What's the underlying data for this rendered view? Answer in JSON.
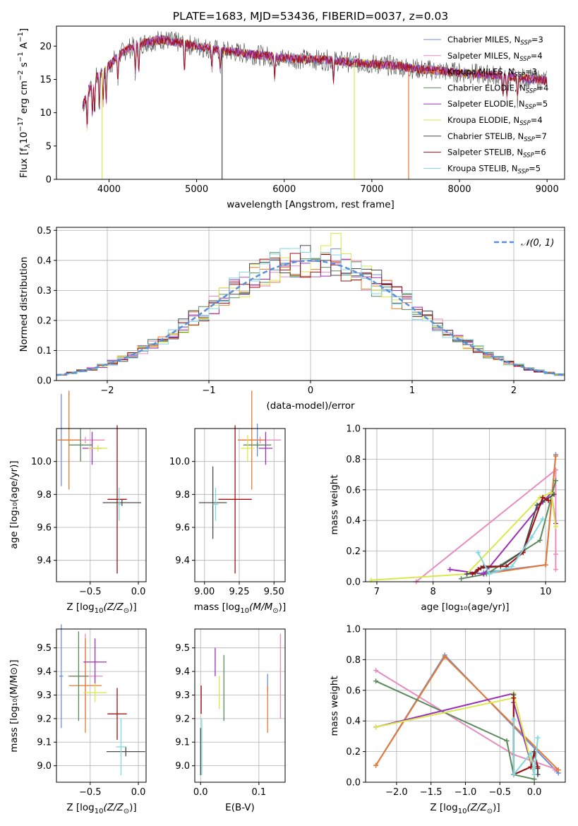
{
  "figure_title": "PLATE=1683, MJD=53436, FIBERID=0037, z=0.03",
  "colors": {
    "Chabrier MILES": "#6a8fd8",
    "Salpeter MILES": "#e88cc0",
    "Kroupa MILES": "#e8792e",
    "Chabrier ELODIE": "#5a8a5a",
    "Salpeter ELODIE": "#9b30b8",
    "Kroupa ELODIE": "#d9e84a",
    "Chabrier STELIB": "#4a4a4a",
    "Salpeter STELIB": "#a01010",
    "Kroupa STELIB": "#7fd8e0",
    "normal": "#5b8fd8"
  },
  "chart_data": [
    {
      "type": "line",
      "xlabel": "wavelength [Angstrom, rest frame]",
      "ylabel_main": "Flux [f",
      "ylabel_sub": "λ",
      "ylabel_rest": "10",
      "ylabel_sup1": "−17",
      "ylabel_mid": " erg cm",
      "ylabel_sup2": "−2",
      "ylabel_mid2": " s",
      "ylabel_sup3": "−1",
      "ylabel_end": " A",
      "ylabel_sup4": "−1",
      "ylabel_close": "]",
      "xlim": [
        3400,
        9200
      ],
      "ylim": [
        0,
        23
      ],
      "xticks": [
        4000,
        5000,
        6000,
        7000,
        8000,
        9000
      ],
      "yticks": [
        0,
        5,
        10,
        15,
        20
      ],
      "legend": [
        {
          "base": "Chabrier MILES, N",
          "sub": "SSP",
          "tail": "=3"
        },
        {
          "base": "Salpeter MILES, N",
          "sub": "SSP",
          "tail": "=4"
        },
        {
          "base": "Kroupa MILES, N",
          "sub": "SSP",
          "tail": "=3"
        },
        {
          "base": "Chabrier ELODIE, N",
          "sub": "SSP",
          "tail": "=4"
        },
        {
          "base": "Salpeter ELODIE, N",
          "sub": "SSP",
          "tail": "=5"
        },
        {
          "base": "Kroupa ELODIE, N",
          "sub": "SSP",
          "tail": "=4"
        },
        {
          "base": "Chabrier STELIB, N",
          "sub": "SSP",
          "tail": "=7"
        },
        {
          "base": "Salpeter STELIB, N",
          "sub": "SSP",
          "tail": "=6"
        },
        {
          "base": "Kroupa STELIB, N",
          "sub": "SSP",
          "tail": "=5"
        }
      ],
      "series_names": [
        "Chabrier MILES",
        "Salpeter MILES",
        "Kroupa MILES",
        "Chabrier ELODIE",
        "Salpeter ELODIE",
        "Kroupa ELODIE",
        "Chabrier STELIB",
        "Salpeter STELIB",
        "Kroupa STELIB"
      ],
      "flux_nodes": {
        "x": [
          3700,
          3800,
          3900,
          4000,
          4100,
          4200,
          4400,
          4600,
          4800,
          5000,
          5200,
          5500,
          5800,
          6000,
          6300,
          6600,
          6800,
          7000,
          7300,
          7500,
          8000,
          8500,
          9000,
          9200
        ],
        "y": [
          11,
          14.5,
          16,
          17,
          18.5,
          19.5,
          20.5,
          21,
          20.5,
          20,
          19.5,
          19,
          18.5,
          18.2,
          18,
          17.8,
          17.5,
          17.3,
          17,
          16.6,
          16,
          15.5,
          14.8,
          14.5
        ]
      },
      "absorption_lines": [
        3750,
        3810,
        3835,
        3889,
        3933,
        3968,
        4101,
        4300,
        4340,
        4861,
        5175,
        5270,
        5890,
        6563,
        8498,
        8542,
        8662
      ],
      "spikes": [
        {
          "series": "Kroupa ELODIE",
          "x": 3920,
          "y": 0
        },
        {
          "series": "Chabrier STELIB",
          "x": 5290,
          "y": 0
        },
        {
          "series": "Kroupa ELODIE",
          "x": 6800,
          "y": 0
        },
        {
          "series": "Kroupa MILES",
          "x": 7420,
          "y": 0
        }
      ]
    },
    {
      "type": "histogram",
      "xlabel": "(data-model)/error",
      "ylabel": "Normed distribution",
      "xlim": [
        -2.5,
        2.5
      ],
      "ylim": [
        0,
        0.51
      ],
      "xticks": [
        -2,
        -1,
        0,
        1,
        2
      ],
      "xtick_labels": [
        "−2",
        "−1",
        "0",
        "1",
        "2"
      ],
      "yticks": [
        0.0,
        0.1,
        0.2,
        0.3,
        0.4,
        0.5
      ],
      "ytick_labels": [
        "0.0",
        "0.1",
        "0.2",
        "0.3",
        "0.4",
        "0.5"
      ],
      "bin_width": 0.1,
      "legend_label": "𝒩(0, 1)",
      "grid": true
    },
    {
      "type": "scatter",
      "xlabel_main": "Z [log",
      "xlabel_sub": "10",
      "xlabel_rest": "(Z/Z",
      "xlabel_sub2": "⊙",
      "xlabel_close": ")]",
      "ylabel": "age  [log₁₀(age/yr)]",
      "xlim": [
        -0.85,
        0.08
      ],
      "ylim": [
        9.27,
        10.2
      ],
      "xticks": [
        -0.5,
        0.0
      ],
      "xtick_labels": [
        "−0.5",
        "0.0"
      ],
      "yticks": [
        9.4,
        9.6,
        9.8,
        10.0
      ],
      "yticklabels": [
        "9.4",
        "9.6",
        "9.8",
        "10.0"
      ],
      "points": [
        {
          "series": "Chabrier MILES",
          "x": -0.8,
          "y": 10.13,
          "xerr": 0.02,
          "yerr": 0.28
        },
        {
          "series": "Salpeter MILES",
          "x": -0.55,
          "y": 10.13,
          "xerr": 0.2,
          "yerr": 0.02
        },
        {
          "series": "Kroupa MILES",
          "x": -0.72,
          "y": 10.13,
          "xerr": 0.12,
          "yerr": 0.3
        },
        {
          "series": "Chabrier ELODIE",
          "x": -0.6,
          "y": 10.1,
          "xerr": 0.12,
          "yerr": 0.1
        },
        {
          "series": "Salpeter ELODIE",
          "x": -0.48,
          "y": 10.08,
          "xerr": 0.1,
          "yerr": 0.1
        },
        {
          "series": "Kroupa ELODIE",
          "x": -0.42,
          "y": 10.08,
          "xerr": 0.1,
          "yerr": 0.02
        },
        {
          "series": "Chabrier STELIB",
          "x": -0.17,
          "y": 9.75,
          "xerr": 0.2,
          "yerr": 0.02
        },
        {
          "series": "Salpeter STELIB",
          "x": -0.22,
          "y": 9.77,
          "xerr": 0.1,
          "yerr": 0.45
        },
        {
          "series": "Kroupa STELIB",
          "x": -0.2,
          "y": 9.74,
          "xerr": 0.02,
          "yerr": 0.1
        }
      ]
    },
    {
      "type": "scatter",
      "xlabel_main": "mass [log",
      "xlabel_sub": "10",
      "xlabel_rest": "(M/M",
      "xlabel_sub2": "⊙",
      "xlabel_close": ")]",
      "xlim": [
        8.93,
        9.58
      ],
      "ylim": [
        9.27,
        10.2
      ],
      "xticks": [
        9.0,
        9.25,
        9.5
      ],
      "xtick_labels": [
        "9.00",
        "9.25",
        "9.50"
      ],
      "yticks": [
        9.4,
        9.6,
        9.8,
        10.0
      ],
      "yticklabels": [
        "9.4",
        "9.6",
        "9.8",
        "10.0"
      ],
      "points": [
        {
          "series": "Chabrier MILES",
          "x": 9.38,
          "y": 10.13,
          "xerr": 0.02,
          "yerr": 0.1
        },
        {
          "series": "Salpeter MILES",
          "x": 9.4,
          "y": 10.13,
          "xerr": 0.15,
          "yerr": 0.02
        },
        {
          "series": "Kroupa MILES",
          "x": 9.34,
          "y": 10.13,
          "xerr": 0.1,
          "yerr": 0.3
        },
        {
          "series": "Chabrier ELODIE",
          "x": 9.38,
          "y": 10.1,
          "xerr": 0.1,
          "yerr": 0.02
        },
        {
          "series": "Salpeter ELODIE",
          "x": 9.44,
          "y": 10.08,
          "xerr": 0.05,
          "yerr": 0.1
        },
        {
          "series": "Kroupa ELODIE",
          "x": 9.31,
          "y": 10.08,
          "xerr": 0.05,
          "yerr": 0.08
        },
        {
          "series": "Chabrier STELIB",
          "x": 9.06,
          "y": 9.75,
          "xerr": 0.1,
          "yerr": 0.22
        },
        {
          "series": "Salpeter STELIB",
          "x": 9.22,
          "y": 9.77,
          "xerr": 0.12,
          "yerr": 0.45
        },
        {
          "series": "Kroupa STELIB",
          "x": 9.08,
          "y": 9.74,
          "xerr": 0.02,
          "yerr": 0.1
        }
      ]
    },
    {
      "type": "line",
      "xlabel": "age  [log₁₀(age/yr)]",
      "ylabel": "mass weight",
      "xlim": [
        6.8,
        10.35
      ],
      "ylim": [
        0,
        1
      ],
      "xticks": [
        7,
        8,
        9,
        10
      ],
      "xtick_labels": [
        "7",
        "8",
        "9",
        "10"
      ],
      "yticks": [
        0.0,
        0.2,
        0.4,
        0.6,
        0.8,
        1.0
      ],
      "ytick_labels": [
        "0.0",
        "0.2",
        "0.4",
        "0.6",
        "0.8",
        "1.0"
      ],
      "series": [
        {
          "name": "Chabrier MILES",
          "x": [
            8.9,
            10.0,
            10.18
          ],
          "y": [
            0.06,
            0.11,
            0.83
          ]
        },
        {
          "name": "Salpeter MILES",
          "x": [
            7.7,
            10.18,
            10.18,
            10.18
          ],
          "y": [
            0.0,
            0.73,
            0.18,
            0.08
          ]
        },
        {
          "name": "Kroupa MILES",
          "x": [
            8.9,
            10.0,
            10.18
          ],
          "y": [
            0.05,
            0.11,
            0.82
          ]
        },
        {
          "name": "Chabrier ELODIE",
          "x": [
            8.5,
            8.95,
            9.9,
            10.18
          ],
          "y": [
            0.02,
            0.05,
            0.27,
            0.66
          ]
        },
        {
          "name": "Salpeter ELODIE",
          "x": [
            8.3,
            8.9,
            9.95,
            10.1,
            10.18
          ],
          "y": [
            0.08,
            0.05,
            0.52,
            0.58,
            0.38
          ]
        },
        {
          "name": "Kroupa ELODIE",
          "x": [
            6.9,
            8.6,
            9.9,
            10.1,
            10.18
          ],
          "y": [
            0.01,
            0.05,
            0.55,
            0.58,
            0.36
          ]
        },
        {
          "name": "Chabrier STELIB",
          "x": [
            8.6,
            8.75,
            8.85,
            9.2,
            9.6,
            9.85,
            10.15
          ],
          "y": [
            0.05,
            0.06,
            0.09,
            0.1,
            0.2,
            0.5,
            0.57
          ]
        },
        {
          "name": "Salpeter STELIB",
          "x": [
            8.7,
            8.8,
            8.9,
            9.3,
            9.6,
            9.95,
            10.05
          ],
          "y": [
            0.05,
            0.08,
            0.1,
            0.1,
            0.19,
            0.55,
            0.53
          ]
        },
        {
          "name": "Kroupa STELIB",
          "x": [
            8.8,
            9.0,
            9.4,
            9.75,
            9.95
          ],
          "y": [
            0.19,
            0.05,
            0.1,
            0.29,
            0.41
          ]
        }
      ]
    },
    {
      "type": "scatter",
      "xlabel_main": "Z [log",
      "xlabel_sub": "10",
      "xlabel_rest": "(Z/Z",
      "xlabel_sub2": "⊙",
      "xlabel_close": ")]",
      "ylabel": "mass [log₁₀(M/M⊙)]",
      "xlim": [
        -0.85,
        0.08
      ],
      "ylim": [
        8.93,
        9.58
      ],
      "xticks": [
        -0.5,
        0.0
      ],
      "xtick_labels": [
        "−0.5",
        "0.0"
      ],
      "yticks": [
        9.0,
        9.1,
        9.2,
        9.3,
        9.4,
        9.5
      ],
      "yticklabels": [
        "9.0",
        "9.1",
        "9.2",
        "9.3",
        "9.4",
        "9.5"
      ],
      "points": [
        {
          "series": "Chabrier MILES",
          "x": -0.8,
          "y": 9.38,
          "xerr": 0.02,
          "yerr": 0.22
        },
        {
          "series": "Salpeter MILES",
          "x": -0.55,
          "y": 9.38,
          "xerr": 0.18,
          "yerr": 0.18
        },
        {
          "series": "Kroupa MILES",
          "x": -0.55,
          "y": 9.34,
          "xerr": 0.17,
          "yerr": 0.2
        },
        {
          "series": "Chabrier ELODIE",
          "x": -0.62,
          "y": 9.38,
          "xerr": 0.1,
          "yerr": 0.19
        },
        {
          "series": "Salpeter ELODIE",
          "x": -0.45,
          "y": 9.44,
          "xerr": 0.12,
          "yerr": 0.1
        },
        {
          "series": "Kroupa ELODIE",
          "x": -0.45,
          "y": 9.31,
          "xerr": 0.12,
          "yerr": 0.04
        },
        {
          "series": "Chabrier STELIB",
          "x": -0.13,
          "y": 9.06,
          "xerr": 0.2,
          "yerr": 0.02
        },
        {
          "series": "Salpeter STELIB",
          "x": -0.22,
          "y": 9.22,
          "xerr": 0.1,
          "yerr": 0.11
        },
        {
          "series": "Kroupa STELIB",
          "x": -0.18,
          "y": 9.08,
          "xerr": 0.05,
          "yerr": 0.12
        }
      ]
    },
    {
      "type": "scatter",
      "xlabel": "E(B-V)",
      "xlim": [
        -0.01,
        0.145
      ],
      "ylim": [
        8.93,
        9.58
      ],
      "xticks": [
        0.0,
        0.1
      ],
      "xtick_labels": [
        "0.0",
        "0.1"
      ],
      "yticks": [
        9.0,
        9.1,
        9.2,
        9.3,
        9.4,
        9.5
      ],
      "yticklabels": [
        "9.0",
        "9.1",
        "9.2",
        "9.3",
        "9.4",
        "9.5"
      ],
      "points": [
        {
          "series": "Chabrier MILES",
          "x": 0.115,
          "y": 9.35,
          "xerr": 0,
          "yerr": 0.04
        },
        {
          "series": "Salpeter MILES",
          "x": 0.137,
          "y": 9.38,
          "xerr": 0,
          "yerr": 0.18
        },
        {
          "series": "Kroupa MILES",
          "x": 0.115,
          "y": 9.24,
          "xerr": 0,
          "yerr": 0.1
        },
        {
          "series": "Chabrier ELODIE",
          "x": 0.04,
          "y": 9.33,
          "xerr": 0,
          "yerr": 0.14
        },
        {
          "series": "Salpeter ELODIE",
          "x": 0.025,
          "y": 9.44,
          "xerr": 0,
          "yerr": 0.06
        },
        {
          "series": "Kroupa ELODIE",
          "x": 0.032,
          "y": 9.31,
          "xerr": 0,
          "yerr": 0.07
        },
        {
          "series": "Chabrier STELIB",
          "x": 0.0,
          "y": 9.06,
          "xerr": 0,
          "yerr": 0.1
        },
        {
          "series": "Salpeter STELIB",
          "x": 0.001,
          "y": 9.28,
          "xerr": 0,
          "yerr": 0.06
        },
        {
          "series": "Kroupa STELIB",
          "x": 0.002,
          "y": 9.08,
          "xerr": 0,
          "yerr": 0.12
        }
      ]
    },
    {
      "type": "line",
      "xlabel_main": "Z [log",
      "xlabel_sub": "10",
      "xlabel_rest": "(Z/Z",
      "xlabel_sub2": "⊙",
      "xlabel_close": ")]",
      "ylabel": "mass weight",
      "xlim": [
        -2.45,
        0.45
      ],
      "ylim": [
        0,
        1
      ],
      "xticks": [
        -2.0,
        -1.5,
        -1.0,
        -0.5,
        0.0
      ],
      "xtick_labels": [
        "−2.0",
        "−1.5",
        "−1.0",
        "−0.5",
        "0.0"
      ],
      "yticks": [
        0.0,
        0.2,
        0.4,
        0.6,
        0.8,
        1.0
      ],
      "ytick_labels": [
        "0.0",
        "0.2",
        "0.4",
        "0.6",
        "0.8",
        "1.0"
      ],
      "series": [
        {
          "name": "Chabrier MILES",
          "x": [
            -2.3,
            -1.3,
            0.35
          ],
          "y": [
            0.11,
            0.83,
            0.06
          ]
        },
        {
          "name": "Salpeter MILES",
          "x": [
            -2.3,
            -0.3,
            0.35,
            0.3
          ],
          "y": [
            0.73,
            0.18,
            0.08,
            0.08
          ]
        },
        {
          "name": "Kroupa MILES",
          "x": [
            -2.3,
            -1.3,
            0.35
          ],
          "y": [
            0.11,
            0.82,
            0.08
          ]
        },
        {
          "name": "Chabrier ELODIE",
          "x": [
            -2.3,
            -0.4,
            -0.3,
            0.0
          ],
          "y": [
            0.66,
            0.27,
            0.05,
            0.02
          ]
        },
        {
          "name": "Salpeter ELODIE",
          "x": [
            -2.3,
            -0.3,
            -0.3,
            0.0
          ],
          "y": [
            0.36,
            0.58,
            0.52,
            0.05
          ]
        },
        {
          "name": "Kroupa ELODIE",
          "x": [
            -2.3,
            -0.3,
            -0.3,
            0.0
          ],
          "y": [
            0.36,
            0.55,
            0.58,
            0.05
          ]
        },
        {
          "name": "Chabrier STELIB",
          "x": [
            -0.3,
            -0.3,
            -0.05,
            0.0,
            0.05,
            0.05
          ],
          "y": [
            0.57,
            0.05,
            0.1,
            0.2,
            0.09,
            0.05
          ]
        },
        {
          "name": "Salpeter STELIB",
          "x": [
            -0.3,
            -0.3,
            -0.05,
            0.0,
            0.05
          ],
          "y": [
            0.55,
            0.05,
            0.1,
            0.19,
            0.1
          ]
        },
        {
          "name": "Kroupa STELIB",
          "x": [
            -0.3,
            -0.3,
            -0.05,
            0.0,
            0.05
          ],
          "y": [
            0.41,
            0.05,
            0.19,
            0.05,
            0.29
          ]
        }
      ]
    }
  ]
}
